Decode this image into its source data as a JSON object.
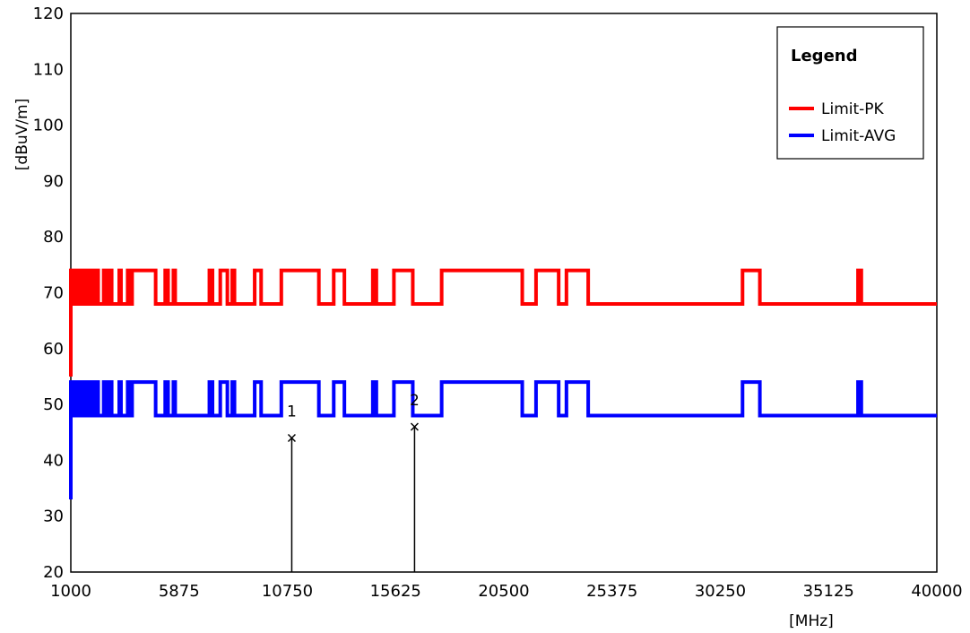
{
  "chart_data": {
    "type": "line",
    "title": "",
    "xlabel": "[MHz]",
    "ylabel": "[dBuV/m]",
    "xlim": [
      1000,
      40000
    ],
    "ylim": [
      20,
      120
    ],
    "x_ticks": [
      1000,
      5875,
      10750,
      15625,
      20500,
      25375,
      30250,
      35125,
      40000
    ],
    "y_ticks": [
      20,
      30,
      40,
      50,
      60,
      70,
      80,
      90,
      100,
      110,
      120
    ],
    "grid": false,
    "legend": {
      "title": "Legend",
      "placement": "top-right",
      "entries": [
        "Limit-PK",
        "Limit-AVG"
      ]
    },
    "series": [
      {
        "name": "Limit-PK",
        "color": "#ff0000",
        "high": 74,
        "low": 68,
        "high_intervals": [
          [
            1000,
            1080
          ],
          [
            1150,
            1230
          ],
          [
            1320,
            1410
          ],
          [
            1500,
            1580
          ],
          [
            1650,
            1730
          ],
          [
            1820,
            1910
          ],
          [
            2000,
            2080
          ],
          [
            2150,
            2230
          ],
          [
            2480,
            2560
          ],
          [
            2620,
            2700
          ],
          [
            2760,
            2840
          ],
          [
            3180,
            3260
          ],
          [
            3560,
            3640
          ],
          [
            3760,
            4820
          ],
          [
            5250,
            5380
          ],
          [
            5620,
            5700
          ],
          [
            7240,
            7380
          ],
          [
            7730,
            8050
          ],
          [
            8270,
            8370
          ],
          [
            9280,
            9570
          ],
          [
            10480,
            12170
          ],
          [
            12840,
            13320
          ],
          [
            14600,
            14760
          ],
          [
            15550,
            16400
          ],
          [
            17700,
            21330
          ],
          [
            21950,
            22970
          ],
          [
            23320,
            24000
          ],
          [
            23600,
            24300
          ],
          [
            31250,
            32030
          ],
          [
            36450,
            36600
          ]
        ],
        "ramp_start": [
          1000,
          55,
          74
        ]
      },
      {
        "name": "Limit-AVG",
        "color": "#0000ff",
        "high": 54,
        "low": 48,
        "high_intervals": [
          [
            1000,
            1080
          ],
          [
            1150,
            1230
          ],
          [
            1320,
            1410
          ],
          [
            1500,
            1580
          ],
          [
            1650,
            1730
          ],
          [
            1820,
            1910
          ],
          [
            2000,
            2080
          ],
          [
            2150,
            2230
          ],
          [
            2480,
            2560
          ],
          [
            2620,
            2700
          ],
          [
            2760,
            2840
          ],
          [
            3180,
            3260
          ],
          [
            3560,
            3640
          ],
          [
            3760,
            4820
          ],
          [
            5250,
            5380
          ],
          [
            5620,
            5700
          ],
          [
            7240,
            7380
          ],
          [
            7730,
            8050
          ],
          [
            8270,
            8370
          ],
          [
            9280,
            9570
          ],
          [
            10480,
            12170
          ],
          [
            12840,
            13320
          ],
          [
            14600,
            14760
          ],
          [
            15550,
            16400
          ],
          [
            17700,
            21330
          ],
          [
            21950,
            22970
          ],
          [
            23320,
            24000
          ],
          [
            23600,
            24300
          ],
          [
            31250,
            32030
          ],
          [
            36450,
            36600
          ]
        ],
        "ramp_start": [
          1000,
          33,
          54
        ]
      }
    ],
    "markers": [
      {
        "label": "1",
        "x": 10950,
        "y": 44
      },
      {
        "label": "2",
        "x": 16480,
        "y": 46
      }
    ]
  }
}
